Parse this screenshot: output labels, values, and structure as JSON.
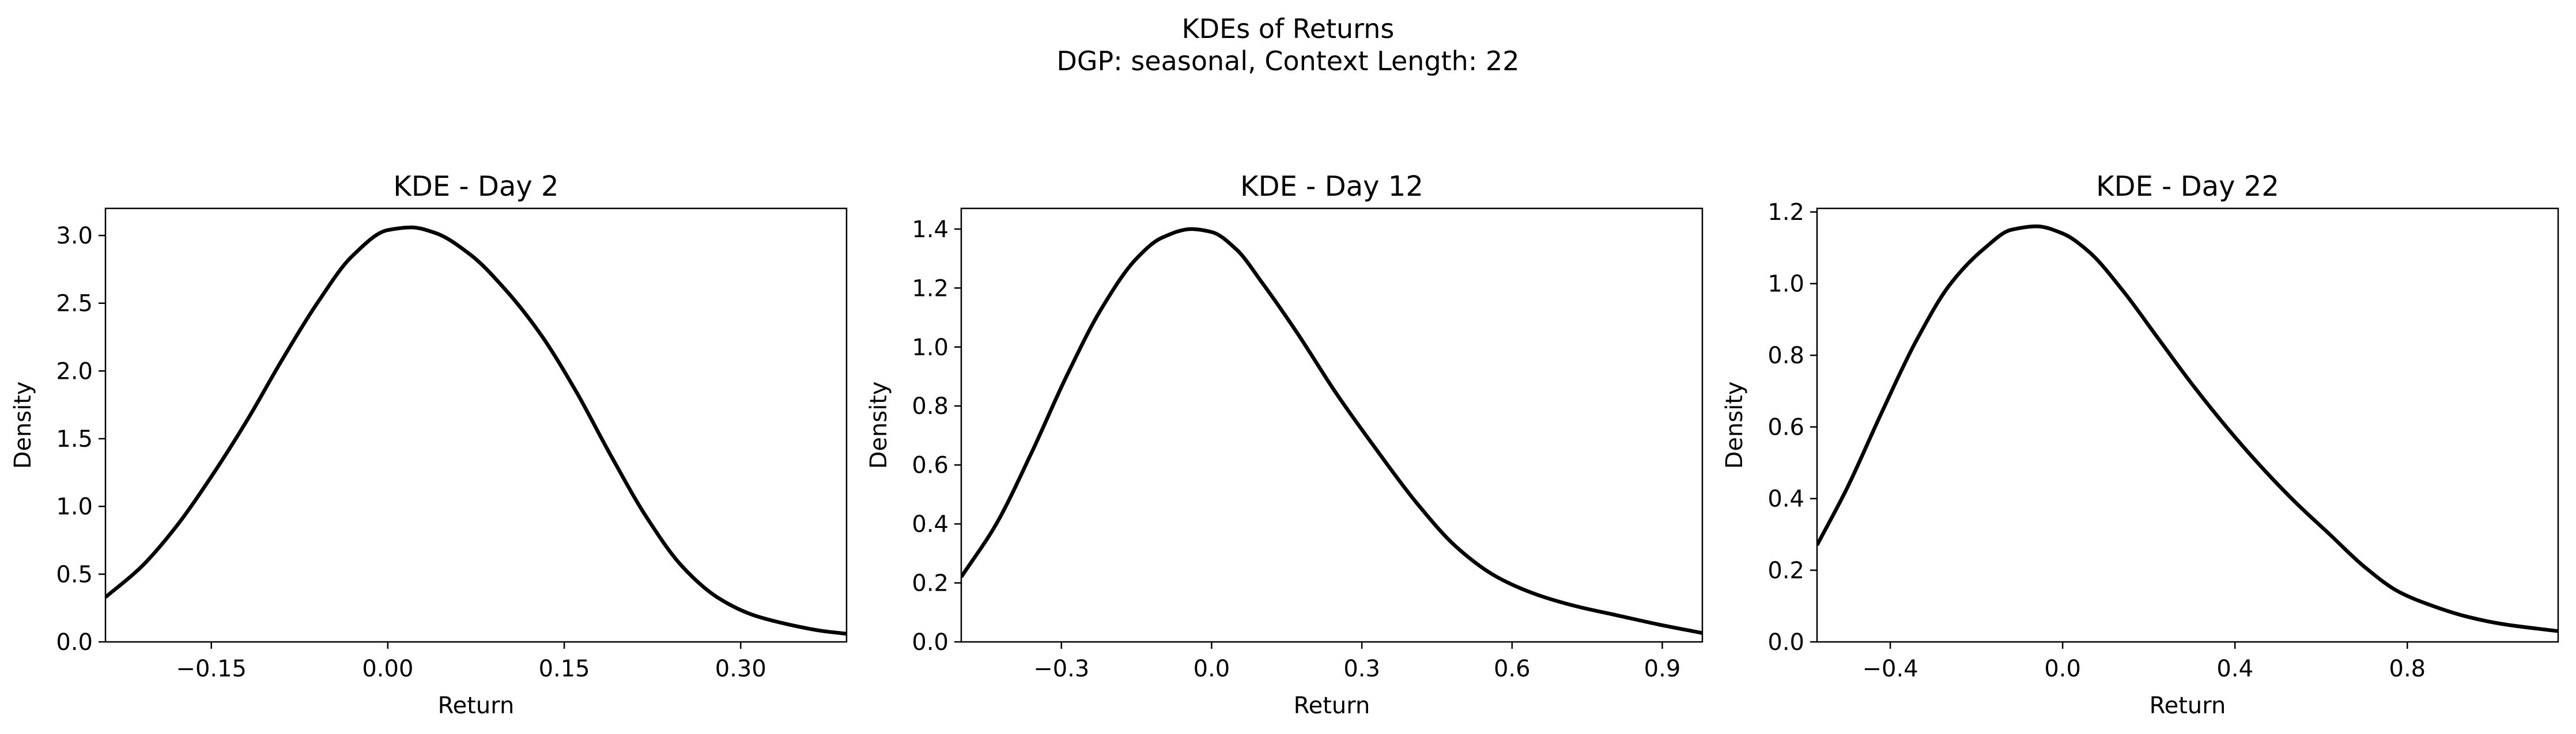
{
  "figure": {
    "title_line1": "KDEs of Returns",
    "title_line2": "DGP: seasonal, Context Length: 22"
  },
  "chart_data": [
    {
      "type": "line",
      "title": "KDE - Day 2",
      "xlabel": "Return",
      "ylabel": "Density",
      "xlim": [
        -0.24,
        0.39
      ],
      "ylim": [
        0,
        3.2
      ],
      "xticks": [
        -0.15,
        0.0,
        0.15,
        0.3
      ],
      "xtick_labels": [
        "−0.15",
        "0.00",
        "0.15",
        "0.30"
      ],
      "yticks": [
        0,
        0.5,
        1.0,
        1.5,
        2.0,
        2.5,
        3.0
      ],
      "ytick_labels": [
        "0.0",
        "0.5",
        "1.0",
        "1.5",
        "2.0",
        "2.5",
        "3.0"
      ],
      "line_color": "#000000",
      "grid": false,
      "series": [
        {
          "x": [
            -0.24,
            -0.21,
            -0.18,
            -0.15,
            -0.12,
            -0.09,
            -0.06,
            -0.03,
            0.0,
            0.02,
            0.04,
            0.07,
            0.1,
            0.13,
            0.16,
            0.19,
            0.22,
            0.25,
            0.28,
            0.31,
            0.34,
            0.37,
            0.39
          ],
          "y": [
            0.33,
            0.55,
            0.85,
            1.22,
            1.63,
            2.08,
            2.5,
            2.85,
            3.04,
            3.06,
            3.02,
            2.86,
            2.6,
            2.27,
            1.85,
            1.37,
            0.92,
            0.56,
            0.33,
            0.2,
            0.13,
            0.08,
            0.06
          ]
        }
      ]
    },
    {
      "type": "line",
      "title": "KDE - Day 12",
      "xlabel": "Return",
      "ylabel": "Density",
      "xlim": [
        -0.5,
        0.98
      ],
      "ylim": [
        0,
        1.47
      ],
      "xticks": [
        -0.3,
        0.0,
        0.3,
        0.6,
        0.9
      ],
      "xtick_labels": [
        "−0.3",
        "0.0",
        "0.3",
        "0.6",
        "0.9"
      ],
      "yticks": [
        0,
        0.2,
        0.4,
        0.6,
        0.8,
        1.0,
        1.2,
        1.4
      ],
      "ytick_labels": [
        "0.0",
        "0.2",
        "0.4",
        "0.6",
        "0.8",
        "1.0",
        "1.2",
        "1.4"
      ],
      "line_color": "#000000",
      "grid": false,
      "series": [
        {
          "x": [
            -0.5,
            -0.43,
            -0.36,
            -0.29,
            -0.22,
            -0.15,
            -0.1,
            -0.04,
            0.0,
            0.05,
            0.1,
            0.17,
            0.25,
            0.33,
            0.41,
            0.49,
            0.57,
            0.65,
            0.73,
            0.81,
            0.89,
            0.98
          ],
          "y": [
            0.22,
            0.4,
            0.64,
            0.9,
            1.13,
            1.3,
            1.37,
            1.4,
            1.39,
            1.33,
            1.22,
            1.05,
            0.84,
            0.65,
            0.47,
            0.32,
            0.22,
            0.16,
            0.12,
            0.09,
            0.06,
            0.03
          ]
        }
      ]
    },
    {
      "type": "line",
      "title": "KDE - Day 22",
      "xlabel": "Return",
      "ylabel": "Density",
      "xlim": [
        -0.57,
        1.15
      ],
      "ylim": [
        0,
        1.21
      ],
      "xticks": [
        -0.4,
        0.0,
        0.4,
        0.8
      ],
      "xtick_labels": [
        "−0.4",
        "0.0",
        "0.4",
        "0.8"
      ],
      "yticks": [
        0,
        0.2,
        0.4,
        0.6,
        0.8,
        1.0,
        1.2
      ],
      "ytick_labels": [
        "0.0",
        "0.2",
        "0.4",
        "0.6",
        "0.8",
        "1.0",
        "1.2"
      ],
      "line_color": "#000000",
      "grid": false,
      "series": [
        {
          "x": [
            -0.57,
            -0.5,
            -0.42,
            -0.34,
            -0.26,
            -0.18,
            -0.12,
            -0.06,
            0.0,
            0.06,
            0.14,
            0.22,
            0.3,
            0.38,
            0.46,
            0.54,
            0.62,
            0.7,
            0.78,
            0.86,
            0.94,
            1.02,
            1.15
          ],
          "y": [
            0.27,
            0.43,
            0.64,
            0.84,
            1.0,
            1.1,
            1.15,
            1.16,
            1.14,
            1.09,
            0.98,
            0.85,
            0.72,
            0.6,
            0.49,
            0.39,
            0.3,
            0.21,
            0.14,
            0.1,
            0.07,
            0.05,
            0.03
          ]
        }
      ]
    }
  ]
}
